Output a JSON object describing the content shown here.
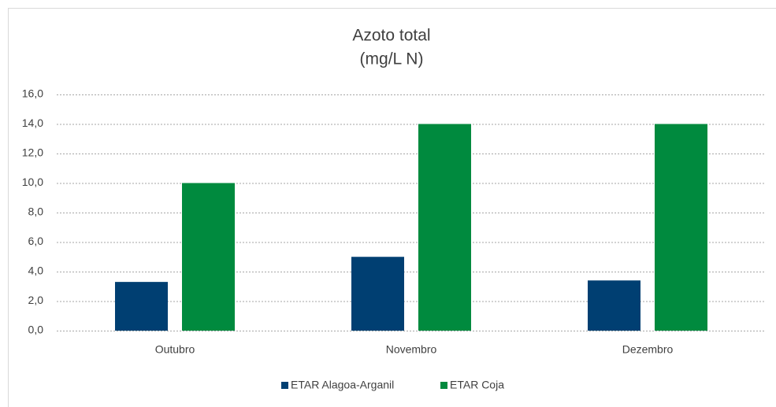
{
  "chart_data": {
    "type": "bar",
    "title": "Azoto total",
    "subtitle": "(mg/L N)",
    "categories": [
      "Outubro",
      "Novembro",
      "Dezembro"
    ],
    "series": [
      {
        "name": "ETAR Alagoa-Arganil",
        "color": "#003f72",
        "values": [
          3.3,
          5.0,
          3.4
        ]
      },
      {
        "name": "ETAR Coja",
        "color": "#008a3e",
        "values": [
          10,
          14,
          14
        ]
      }
    ],
    "ylim": [
      0,
      16
    ],
    "yticks": [
      {
        "value": 0,
        "label": "0,0"
      },
      {
        "value": 2,
        "label": "2,0"
      },
      {
        "value": 4,
        "label": "4,0"
      },
      {
        "value": 6,
        "label": "6,0"
      },
      {
        "value": 8,
        "label": "8,0"
      },
      {
        "value": 10,
        "label": "10,0"
      },
      {
        "value": 12,
        "label": "12,0"
      },
      {
        "value": 14,
        "label": "14,0"
      },
      {
        "value": 16,
        "label": "16,0"
      }
    ],
    "grid": true,
    "legend": "bottom"
  }
}
